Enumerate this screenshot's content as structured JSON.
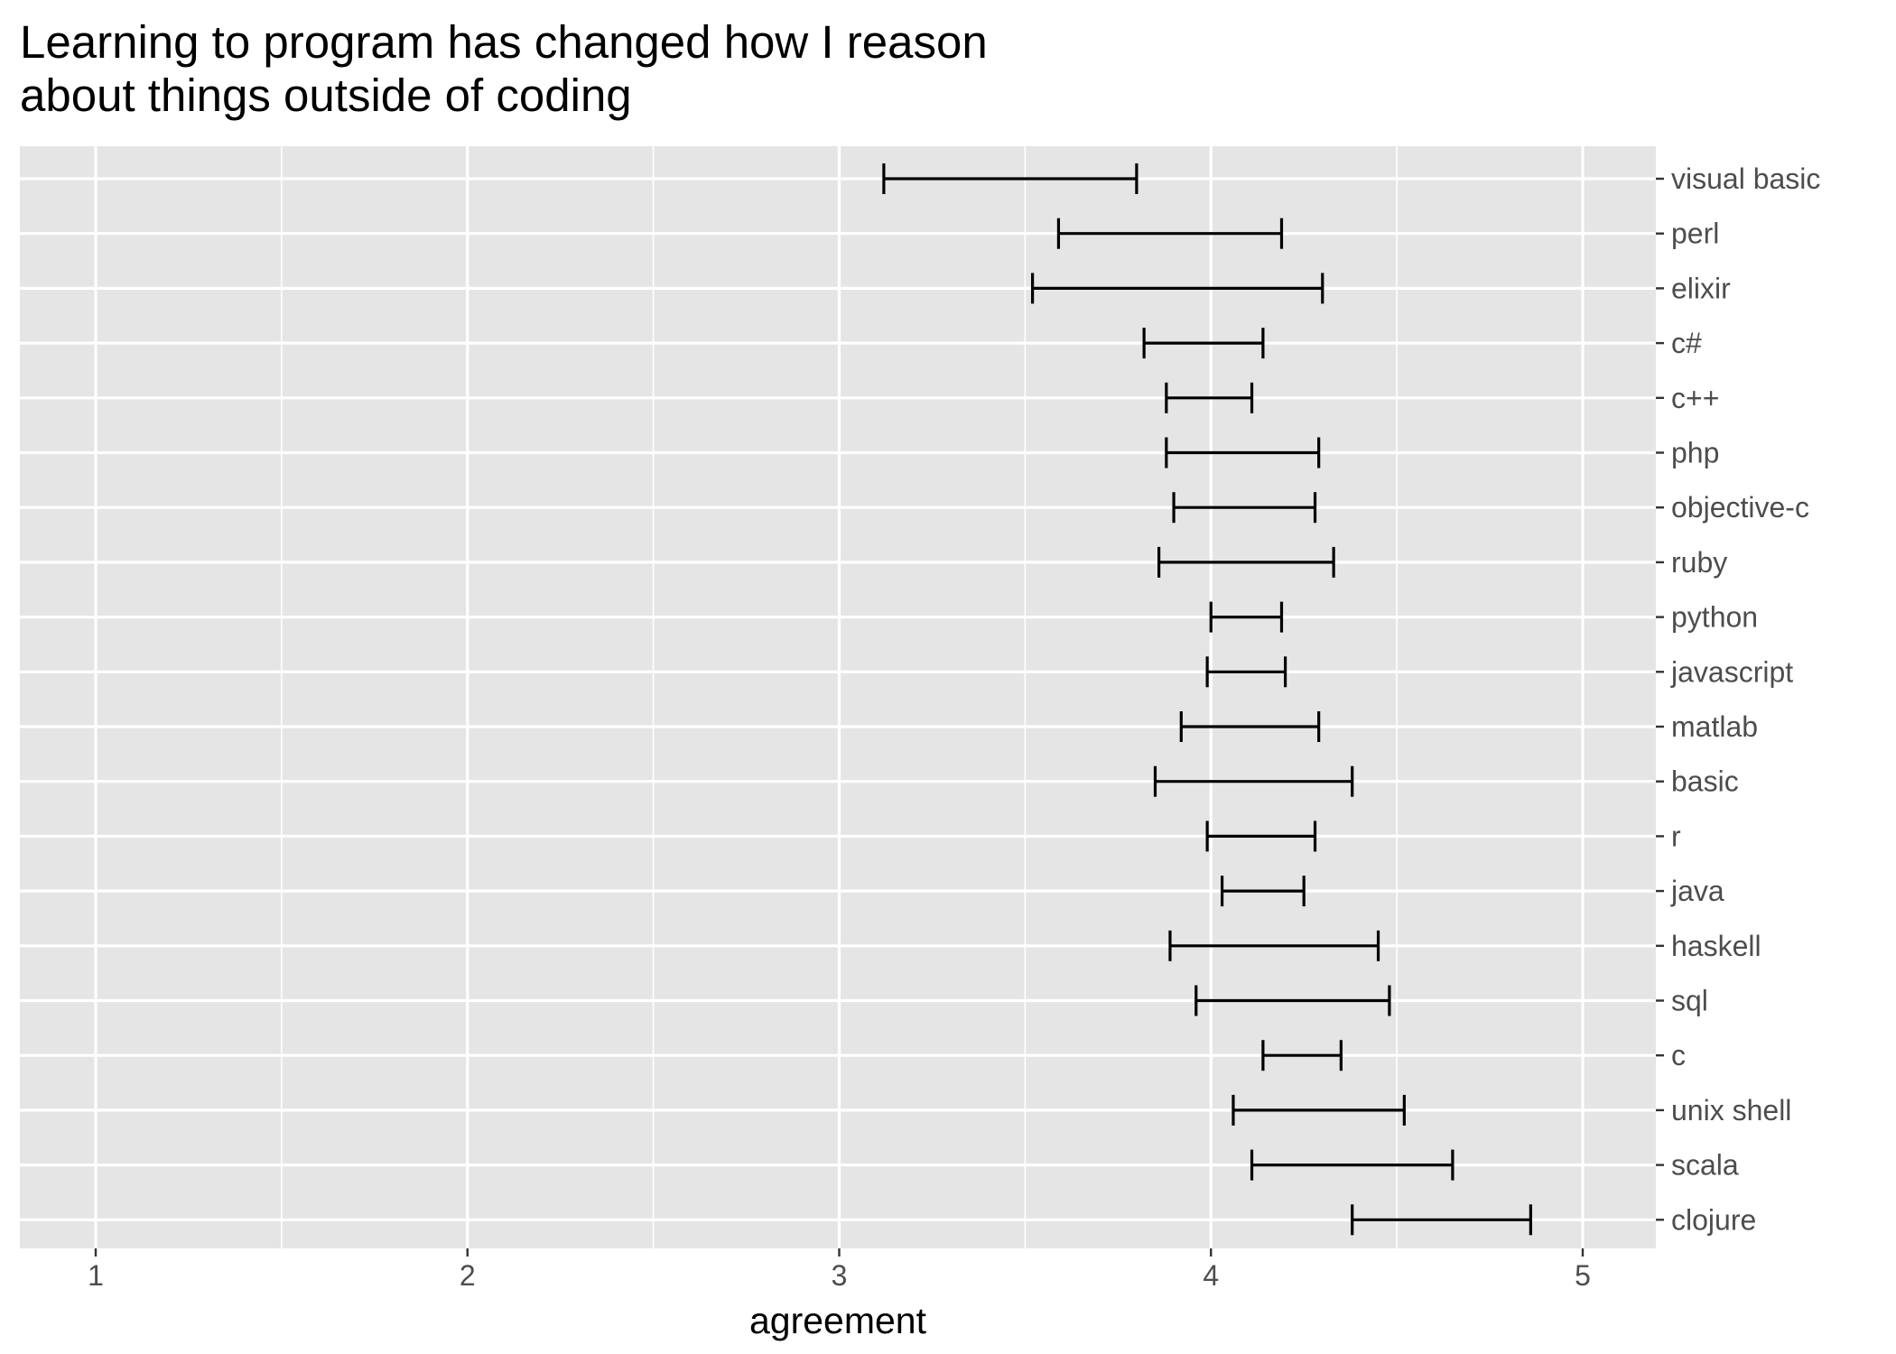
{
  "chart_data": {
    "type": "errorbar",
    "orientation": "horizontal",
    "title_lines": [
      "Learning to program has changed how I reason",
      "about things outside of coding"
    ],
    "xlabel": "agreement",
    "ylabel": "",
    "xlim": [
      0.8,
      5.2
    ],
    "x_ticks": [
      1,
      2,
      3,
      4,
      5
    ],
    "x_tick_labels": [
      "1",
      "2",
      "3",
      "4",
      "5"
    ],
    "x_minor_ticks": [
      1.5,
      2.5,
      3.5,
      4.5
    ],
    "grid": true,
    "legend": "none",
    "colors": {
      "panel_background": "#e5e5e5",
      "grid_line": "#ffffff",
      "error_bar": "#000000",
      "tick_text": "#4d4d4d",
      "tick_mark": "#333333",
      "title_text": "#000000"
    },
    "categories": [
      "visual basic",
      "perl",
      "elixir",
      "c#",
      "c++",
      "php",
      "objective-c",
      "ruby",
      "python",
      "javascript",
      "matlab",
      "basic",
      "r",
      "java",
      "haskell",
      "sql",
      "c",
      "unix shell",
      "scala",
      "clojure"
    ],
    "intervals": [
      {
        "category": "visual basic",
        "low": 3.12,
        "high": 3.8
      },
      {
        "category": "perl",
        "low": 3.59,
        "high": 4.19
      },
      {
        "category": "elixir",
        "low": 3.52,
        "high": 4.3
      },
      {
        "category": "c#",
        "low": 3.82,
        "high": 4.14
      },
      {
        "category": "c++",
        "low": 3.88,
        "high": 4.11
      },
      {
        "category": "php",
        "low": 3.88,
        "high": 4.29
      },
      {
        "category": "objective-c",
        "low": 3.9,
        "high": 4.28
      },
      {
        "category": "ruby",
        "low": 3.86,
        "high": 4.33
      },
      {
        "category": "python",
        "low": 4.0,
        "high": 4.19
      },
      {
        "category": "javascript",
        "low": 3.99,
        "high": 4.2
      },
      {
        "category": "matlab",
        "low": 3.92,
        "high": 4.29
      },
      {
        "category": "basic",
        "low": 3.85,
        "high": 4.38
      },
      {
        "category": "r",
        "low": 3.99,
        "high": 4.28
      },
      {
        "category": "java",
        "low": 4.03,
        "high": 4.25
      },
      {
        "category": "haskell",
        "low": 3.89,
        "high": 4.45
      },
      {
        "category": "sql",
        "low": 3.96,
        "high": 4.48
      },
      {
        "category": "c",
        "low": 4.14,
        "high": 4.35
      },
      {
        "category": "unix shell",
        "low": 4.06,
        "high": 4.52
      },
      {
        "category": "scala",
        "low": 4.11,
        "high": 4.65
      },
      {
        "category": "clojure",
        "low": 4.38,
        "high": 4.86
      }
    ]
  }
}
